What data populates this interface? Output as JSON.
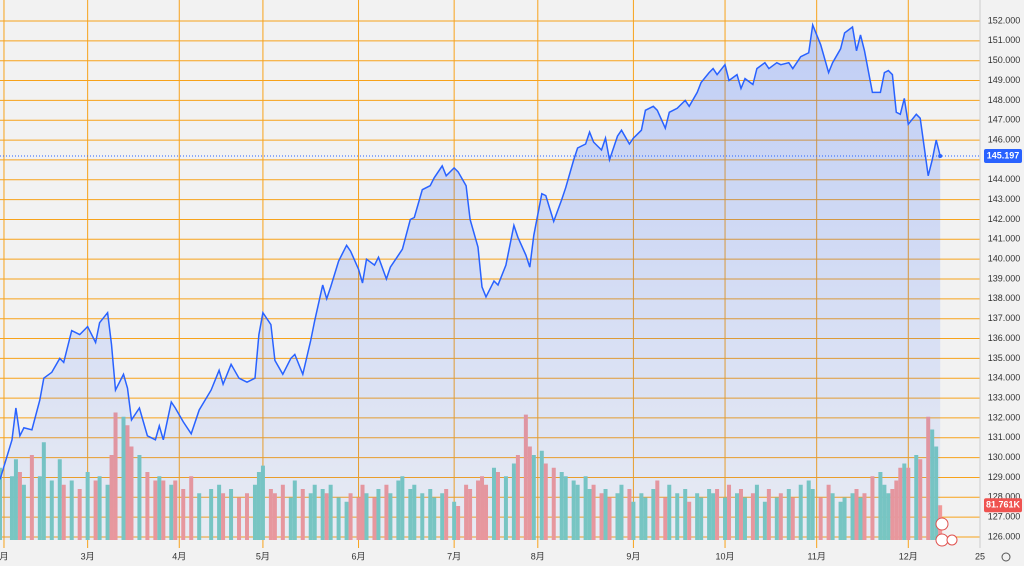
{
  "chart_data": {
    "type": "line",
    "x": [
      0,
      3,
      4,
      5,
      6,
      8,
      10,
      11,
      13,
      15,
      16,
      18,
      20,
      22,
      24,
      25,
      27,
      28,
      29,
      31,
      32,
      33,
      35,
      37,
      39,
      40,
      41,
      43,
      44,
      46,
      48,
      50,
      53,
      55,
      56,
      58,
      60,
      62,
      64,
      65,
      66,
      68,
      69,
      71,
      73,
      74,
      76,
      78,
      79,
      81,
      82,
      83,
      85,
      87,
      88,
      90,
      91,
      92,
      94,
      95,
      97,
      98,
      100,
      101,
      103,
      104,
      106,
      108,
      109,
      111,
      112,
      114,
      115,
      117,
      118,
      120,
      121,
      122,
      124,
      125,
      127,
      129,
      130,
      132,
      133,
      134,
      136,
      137,
      139,
      141,
      142,
      144,
      145,
      147,
      148,
      149,
      151,
      152,
      153,
      155,
      156,
      158,
      159,
      161,
      162,
      164,
      165,
      167,
      168,
      170,
      172,
      173,
      175,
      176,
      178,
      179,
      180,
      182,
      183,
      185,
      186,
      187,
      189,
      190,
      192,
      193,
      195,
      196,
      198,
      199,
      201,
      203,
      204,
      206,
      208,
      209,
      211,
      212,
      214,
      215,
      216,
      217,
      219,
      221,
      222,
      223,
      224,
      225,
      226,
      227,
      228,
      230,
      231,
      233,
      234,
      235,
      236
    ],
    "values": [
      128.9,
      130.9,
      132.5,
      131.1,
      131.5,
      131.4,
      132.9,
      134.0,
      134.3,
      135.0,
      134.8,
      136.4,
      136.2,
      136.6,
      135.8,
      136.8,
      137.3,
      135.7,
      133.4,
      134.2,
      133.5,
      131.9,
      132.5,
      131.1,
      130.9,
      131.6,
      130.9,
      132.8,
      132.5,
      131.8,
      131.2,
      132.4,
      133.4,
      134.4,
      133.7,
      134.7,
      134.0,
      133.8,
      134.0,
      136.2,
      137.3,
      136.7,
      134.9,
      134.2,
      135.0,
      135.2,
      134.2,
      135.9,
      136.9,
      138.7,
      138.0,
      138.6,
      139.9,
      140.7,
      140.4,
      139.5,
      138.8,
      140.0,
      139.7,
      140.1,
      139.0,
      139.6,
      140.2,
      140.5,
      142.0,
      142.1,
      143.5,
      143.7,
      144.1,
      144.7,
      144.2,
      144.6,
      144.4,
      143.7,
      142.0,
      140.6,
      138.6,
      138.1,
      138.9,
      138.7,
      139.7,
      141.7,
      141.1,
      140.2,
      139.6,
      141.2,
      143.3,
      143.2,
      141.9,
      143.0,
      143.6,
      145.0,
      145.6,
      145.8,
      146.4,
      145.9,
      145.5,
      146.1,
      145.0,
      146.2,
      146.5,
      145.8,
      146.1,
      146.5,
      147.5,
      147.7,
      147.5,
      146.6,
      147.4,
      147.6,
      148.0,
      147.7,
      148.4,
      148.9,
      149.4,
      149.6,
      149.3,
      149.8,
      149.0,
      149.3,
      148.6,
      149.1,
      148.8,
      149.6,
      149.9,
      149.6,
      149.9,
      149.8,
      149.9,
      149.6,
      150.2,
      150.4,
      151.8,
      150.8,
      149.4,
      149.9,
      150.6,
      151.4,
      151.7,
      150.5,
      151.3,
      150.5,
      148.4,
      148.4,
      149.4,
      149.5,
      149.3,
      147.4,
      147.3,
      148.1,
      146.8,
      147.3,
      147.1,
      144.2,
      145.0,
      146.0,
      145.197
    ],
    "color": "#2962ff",
    "xlim": [
      0,
      246
    ],
    "xticks": [
      {
        "value": 1,
        "label": "月"
      },
      {
        "value": 22,
        "label": "3月"
      },
      {
        "value": 45,
        "label": "4月"
      },
      {
        "value": 66,
        "label": "5月"
      },
      {
        "value": 90,
        "label": "6月"
      },
      {
        "value": 114,
        "label": "7月"
      },
      {
        "value": 135,
        "label": "8月"
      },
      {
        "value": 159,
        "label": "9月"
      },
      {
        "value": 182,
        "label": "10月"
      },
      {
        "value": 205,
        "label": "11月"
      },
      {
        "value": 228,
        "label": "12月"
      },
      {
        "value": 246,
        "label": "25"
      }
    ],
    "ylim": [
      126,
      152
    ],
    "yticks": [
      {
        "value": 126,
        "label": "126.000"
      },
      {
        "value": 127,
        "label": "127.000"
      },
      {
        "value": 128,
        "label": "128.000"
      },
      {
        "value": 129,
        "label": "129.000"
      },
      {
        "value": 130,
        "label": "130.000"
      },
      {
        "value": 131,
        "label": "131.000"
      },
      {
        "value": 132,
        "label": "132.000"
      },
      {
        "value": 133,
        "label": "133.000"
      },
      {
        "value": 134,
        "label": "134.000"
      },
      {
        "value": 135,
        "label": "135.000"
      },
      {
        "value": 136,
        "label": "136.000"
      },
      {
        "value": 137,
        "label": "137.000"
      },
      {
        "value": 138,
        "label": "138.000"
      },
      {
        "value": 139,
        "label": "139.000"
      },
      {
        "value": 140,
        "label": "140.000"
      },
      {
        "value": 141,
        "label": "141.000"
      },
      {
        "value": 142,
        "label": "142.000"
      },
      {
        "value": 143,
        "label": "143.000"
      },
      {
        "value": 144,
        "label": "144.000"
      },
      {
        "value": 145,
        "label": "145.000"
      },
      {
        "value": 146,
        "label": "146.000"
      },
      {
        "value": 147,
        "label": "147.000"
      },
      {
        "value": 148,
        "label": "148.000"
      },
      {
        "value": 149,
        "label": "149.000"
      },
      {
        "value": 150,
        "label": "150.000"
      },
      {
        "value": 151,
        "label": "151.000"
      },
      {
        "value": 152,
        "label": "152.000"
      }
    ],
    "grid": true,
    "grid_color": "#f7a21b",
    "volume": {
      "values": [
        170,
        150,
        190,
        160,
        130,
        200,
        150,
        230,
        140,
        190,
        130,
        140,
        120,
        160,
        140,
        150,
        130,
        200,
        300,
        290,
        270,
        220,
        200,
        160,
        140,
        150,
        140,
        130,
        140,
        120,
        150,
        110,
        120,
        130,
        110,
        120,
        100,
        110,
        130,
        160,
        175,
        120,
        110,
        130,
        100,
        140,
        120,
        110,
        130,
        120,
        110,
        130,
        100,
        90,
        110,
        100,
        130,
        110,
        100,
        120,
        130,
        110,
        140,
        150,
        120,
        130,
        110,
        120,
        100,
        110,
        120,
        90,
        80,
        130,
        120,
        140,
        150,
        130,
        170,
        160,
        150,
        180,
        200,
        295,
        220,
        200,
        210,
        180,
        170,
        160,
        150,
        140,
        130,
        150,
        120,
        130,
        110,
        120,
        100,
        110,
        130,
        120,
        90,
        110,
        100,
        120,
        140,
        100,
        130,
        110,
        120,
        90,
        110,
        100,
        120,
        110,
        120,
        100,
        130,
        110,
        120,
        100,
        110,
        130,
        90,
        120,
        100,
        110,
        120,
        100,
        130,
        140,
        120,
        100,
        130,
        110,
        90,
        100,
        110,
        120,
        100,
        110,
        150,
        160,
        130,
        110,
        120,
        140,
        170,
        180,
        170,
        200,
        190,
        290,
        260,
        220,
        81.761
      ],
      "ylim": [
        0,
        400
      ],
      "up_color": "#7ccbbf",
      "down_color": "#f29a98",
      "last_label": "81.761K"
    }
  }
}
